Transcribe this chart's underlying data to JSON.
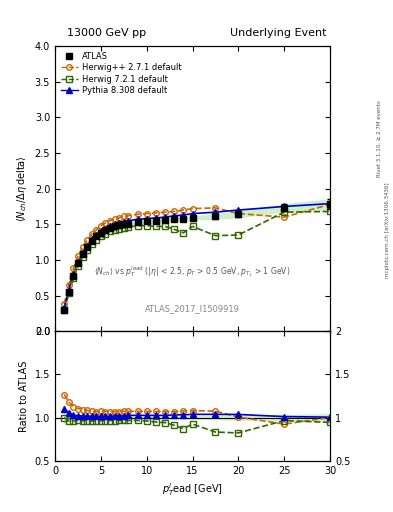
{
  "title_left": "13000 GeV pp",
  "title_right": "Underlying Event",
  "subplot_label": "ATLAS_2017_I1509919",
  "right_label_top": "Rivet 3.1.10, ≥ 2.7M events",
  "right_label_bottom": "mcplots.cern.ch [arXiv:1306.3436]",
  "ylim_main": [
    0,
    4
  ],
  "ylim_ratio": [
    0.5,
    2.0
  ],
  "xlim": [
    0,
    30
  ],
  "atlas_x": [
    1.0,
    1.5,
    2.0,
    2.5,
    3.0,
    3.5,
    4.0,
    4.5,
    5.0,
    5.5,
    6.0,
    6.5,
    7.0,
    7.5,
    8.0,
    9.0,
    10.0,
    11.0,
    12.0,
    13.0,
    14.0,
    15.0,
    17.5,
    20.0,
    25.0,
    30.0
  ],
  "atlas_y": [
    0.3,
    0.55,
    0.78,
    0.95,
    1.08,
    1.18,
    1.27,
    1.33,
    1.38,
    1.42,
    1.45,
    1.47,
    1.49,
    1.5,
    1.51,
    1.53,
    1.54,
    1.55,
    1.56,
    1.57,
    1.58,
    1.59,
    1.61,
    1.64,
    1.73,
    1.78
  ],
  "atlas_yerr": [
    0.02,
    0.02,
    0.02,
    0.02,
    0.02,
    0.02,
    0.02,
    0.02,
    0.02,
    0.02,
    0.02,
    0.02,
    0.02,
    0.02,
    0.02,
    0.02,
    0.02,
    0.02,
    0.02,
    0.02,
    0.02,
    0.02,
    0.03,
    0.04,
    0.05,
    0.07
  ],
  "herwig_x": [
    1.0,
    1.5,
    2.0,
    2.5,
    3.0,
    3.5,
    4.0,
    4.5,
    5.0,
    5.5,
    6.0,
    6.5,
    7.0,
    7.5,
    8.0,
    9.0,
    10.0,
    11.0,
    12.0,
    13.0,
    14.0,
    15.0,
    17.5,
    20.0,
    25.0,
    30.0
  ],
  "herwig_y": [
    0.38,
    0.65,
    0.88,
    1.05,
    1.18,
    1.28,
    1.36,
    1.42,
    1.48,
    1.52,
    1.55,
    1.57,
    1.59,
    1.61,
    1.62,
    1.64,
    1.65,
    1.66,
    1.67,
    1.68,
    1.7,
    1.72,
    1.73,
    1.65,
    1.6,
    1.78
  ],
  "herwig7_x": [
    1.0,
    1.5,
    2.0,
    2.5,
    3.0,
    3.5,
    4.0,
    4.5,
    5.0,
    5.5,
    6.0,
    6.5,
    7.0,
    7.5,
    8.0,
    9.0,
    10.0,
    11.0,
    12.0,
    13.0,
    14.0,
    15.0,
    17.5,
    20.0,
    25.0,
    30.0
  ],
  "herwig7_y": [
    0.3,
    0.53,
    0.75,
    0.92,
    1.04,
    1.14,
    1.22,
    1.28,
    1.33,
    1.37,
    1.4,
    1.42,
    1.44,
    1.45,
    1.46,
    1.48,
    1.48,
    1.47,
    1.47,
    1.43,
    1.38,
    1.47,
    1.34,
    1.35,
    1.67,
    1.68
  ],
  "pythia_x": [
    1.0,
    1.5,
    2.0,
    2.5,
    3.0,
    3.5,
    4.0,
    4.5,
    5.0,
    5.5,
    6.0,
    6.5,
    7.0,
    7.5,
    8.0,
    9.0,
    10.0,
    11.0,
    12.0,
    13.0,
    14.0,
    15.0,
    17.5,
    20.0,
    25.0,
    30.0
  ],
  "pythia_y": [
    0.33,
    0.58,
    0.8,
    0.97,
    1.1,
    1.2,
    1.29,
    1.35,
    1.4,
    1.44,
    1.47,
    1.5,
    1.52,
    1.53,
    1.55,
    1.57,
    1.58,
    1.59,
    1.6,
    1.62,
    1.63,
    1.65,
    1.67,
    1.7,
    1.75,
    1.79
  ],
  "atlas_color": "#000000",
  "herwig_color": "#cc6600",
  "herwig7_color": "#336600",
  "pythia_color": "#0000cc",
  "atlas_band_color": "#c8f0c8"
}
